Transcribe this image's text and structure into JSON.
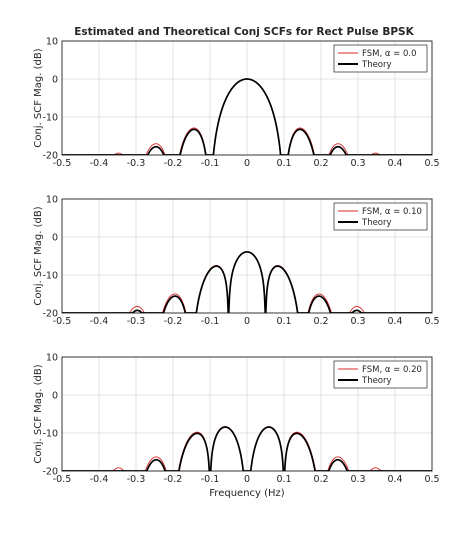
{
  "figure_title": "Estimated and Theoretical Conj SCFs for Rect Pulse BPSK",
  "chart_data": [
    {
      "type": "line",
      "alpha": 0.0,
      "xlabel": "",
      "ylabel": "Conj. SCF Mag. (dB)",
      "xlim": [
        -0.5,
        0.5
      ],
      "ylim": [
        -20,
        10
      ],
      "xticks": [
        "-0.5",
        "-0.4",
        "-0.3",
        "-0.2",
        "-0.1",
        "0",
        "0.1",
        "0.2",
        "0.3",
        "0.4",
        "0.5"
      ],
      "yticks": [
        "-20",
        "-10",
        "0",
        "10"
      ],
      "grid": true,
      "legend_position": "top-right",
      "series": [
        {
          "name": "FSM, α = 0.0",
          "color": "#d62728",
          "role": "estimate"
        },
        {
          "name": "Theory",
          "color": "#000000",
          "role": "theory"
        }
      ]
    },
    {
      "type": "line",
      "alpha": 0.1,
      "xlabel": "",
      "ylabel": "Conj. SCF Mag. (dB)",
      "xlim": [
        -0.5,
        0.5
      ],
      "ylim": [
        -20,
        10
      ],
      "xticks": [
        "-0.5",
        "-0.4",
        "-0.3",
        "-0.2",
        "-0.1",
        "0",
        "0.1",
        "0.2",
        "0.3",
        "0.4",
        "0.5"
      ],
      "yticks": [
        "-20",
        "-10",
        "0",
        "10"
      ],
      "grid": true,
      "legend_position": "top-right",
      "series": [
        {
          "name": "FSM, α = 0.10",
          "color": "#d62728",
          "role": "estimate"
        },
        {
          "name": "Theory",
          "color": "#000000",
          "role": "theory"
        }
      ]
    },
    {
      "type": "line",
      "alpha": 0.2,
      "xlabel": "Frequency (Hz)",
      "ylabel": "Conj. SCF Mag. (dB)",
      "xlim": [
        -0.5,
        0.5
      ],
      "ylim": [
        -20,
        10
      ],
      "xticks": [
        "-0.5",
        "-0.4",
        "-0.3",
        "-0.2",
        "-0.1",
        "0",
        "0.1",
        "0.2",
        "0.3",
        "0.4",
        "0.5"
      ],
      "yticks": [
        "-20",
        "-10",
        "0",
        "10"
      ],
      "grid": true,
      "legend_position": "top-right",
      "series": [
        {
          "name": "FSM, α = 0.20",
          "color": "#d62728",
          "role": "estimate"
        },
        {
          "name": "Theory",
          "color": "#000000",
          "role": "theory"
        }
      ]
    }
  ]
}
